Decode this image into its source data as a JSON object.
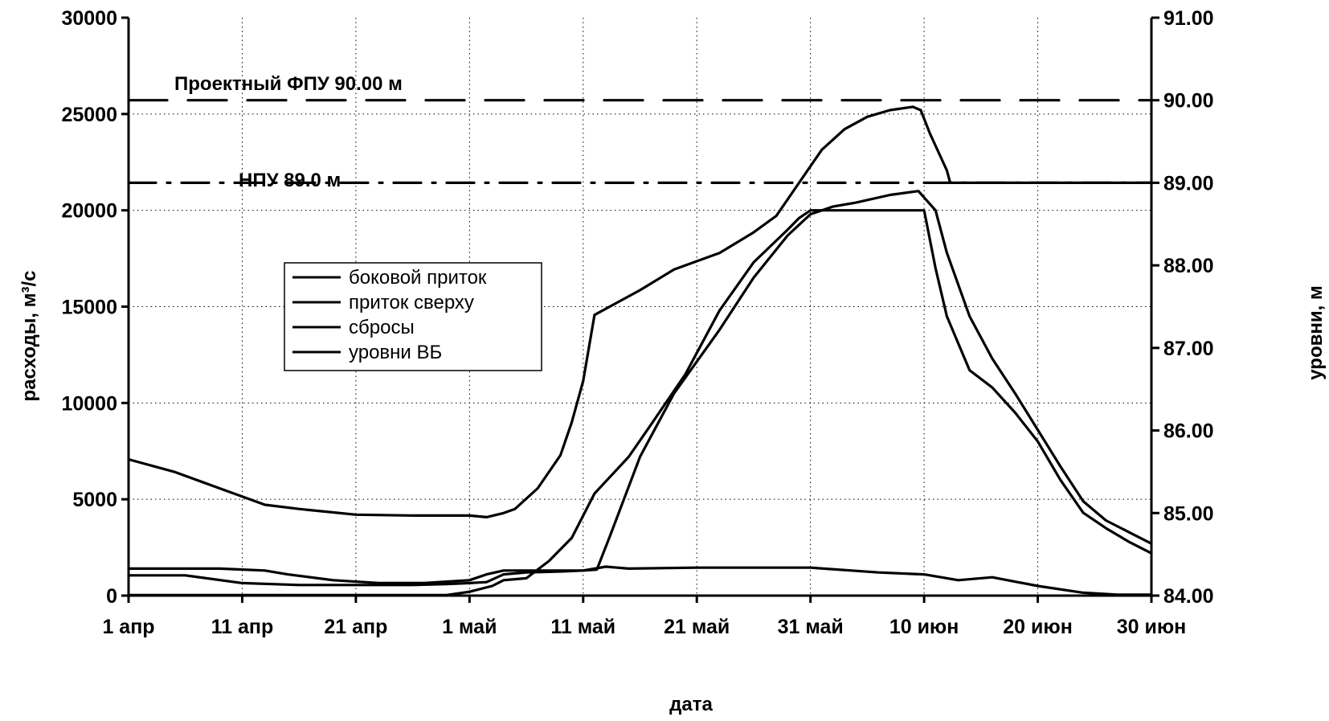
{
  "chart_data": {
    "type": "line",
    "title": "",
    "xlabel": "дата",
    "ylabel": "расходы, м³/с",
    "y2label": "уровни, м",
    "x_range_days": [
      0,
      90
    ],
    "xticks": [
      {
        "day": 0,
        "label": "1 апр"
      },
      {
        "day": 10,
        "label": "11 апр"
      },
      {
        "day": 20,
        "label": "21 апр"
      },
      {
        "day": 30,
        "label": "1 май"
      },
      {
        "day": 40,
        "label": "11 май"
      },
      {
        "day": 50,
        "label": "21 май"
      },
      {
        "day": 60,
        "label": "31 май"
      },
      {
        "day": 70,
        "label": "10 июн"
      },
      {
        "day": 80,
        "label": "20 июн"
      },
      {
        "day": 90,
        "label": "30 июн"
      }
    ],
    "ylim": [
      0,
      30000
    ],
    "yticks": [
      "0",
      "5000",
      "10000",
      "15000",
      "20000",
      "25000",
      "30000"
    ],
    "ylim2": [
      84.0,
      91.0
    ],
    "yticks2": [
      "84.00",
      "85.00",
      "86.00",
      "87.00",
      "88.00",
      "89.00",
      "90.00",
      "91.00"
    ],
    "grid": true,
    "legend_position": "center-left",
    "series": [
      {
        "name": "боковой приток",
        "axis": "left",
        "points": [
          [
            0,
            1400
          ],
          [
            8,
            1400
          ],
          [
            12,
            1300
          ],
          [
            14,
            1100
          ],
          [
            18,
            800
          ],
          [
            22,
            650
          ],
          [
            26,
            650
          ],
          [
            30,
            800
          ],
          [
            31.5,
            1100
          ],
          [
            33,
            1300
          ],
          [
            38,
            1300
          ],
          [
            40,
            1300
          ],
          [
            42,
            1500
          ],
          [
            44,
            1400
          ],
          [
            50,
            1450
          ],
          [
            60,
            1450
          ],
          [
            66,
            1200
          ],
          [
            70,
            1100
          ],
          [
            73,
            800
          ],
          [
            76,
            950
          ],
          [
            80,
            500
          ],
          [
            84,
            150
          ],
          [
            87,
            50
          ],
          [
            90,
            50
          ]
        ]
      },
      {
        "name": "приток сверху",
        "axis": "left",
        "points": [
          [
            0,
            1050
          ],
          [
            5,
            1050
          ],
          [
            10,
            650
          ],
          [
            15,
            550
          ],
          [
            20,
            550
          ],
          [
            25,
            550
          ],
          [
            28,
            600
          ],
          [
            30,
            650
          ],
          [
            31.5,
            700
          ],
          [
            33,
            1100
          ],
          [
            35,
            1200
          ],
          [
            38,
            1250
          ],
          [
            40,
            1300
          ],
          [
            41.2,
            1350
          ],
          [
            42.3,
            3000
          ],
          [
            45,
            7200
          ],
          [
            48,
            10500
          ],
          [
            52,
            13800
          ],
          [
            55,
            16500
          ],
          [
            58,
            18700
          ],
          [
            60,
            19800
          ],
          [
            62,
            20200
          ],
          [
            64,
            20400
          ],
          [
            67,
            20800
          ],
          [
            69.5,
            21000
          ],
          [
            71,
            20000
          ],
          [
            72,
            17800
          ],
          [
            74,
            14500
          ],
          [
            76,
            12300
          ],
          [
            78,
            10500
          ],
          [
            80,
            8600
          ],
          [
            82,
            6700
          ],
          [
            84,
            4900
          ],
          [
            86,
            3900
          ],
          [
            88,
            3300
          ],
          [
            90,
            2700
          ]
        ]
      },
      {
        "name": "сбросы",
        "axis": "left",
        "points": [
          [
            0,
            30
          ],
          [
            20,
            30
          ],
          [
            28,
            30
          ],
          [
            30,
            200
          ],
          [
            32,
            500
          ],
          [
            33,
            800
          ],
          [
            35,
            900
          ],
          [
            37,
            1800
          ],
          [
            39,
            3000
          ],
          [
            41,
            5300
          ],
          [
            44,
            7200
          ],
          [
            46,
            8900
          ],
          [
            49,
            11500
          ],
          [
            52,
            14800
          ],
          [
            55,
            17300
          ],
          [
            58,
            19000
          ],
          [
            59,
            19600
          ],
          [
            60,
            20000
          ],
          [
            70,
            20000
          ],
          [
            71,
            17000
          ],
          [
            72,
            14500
          ],
          [
            74,
            11700
          ],
          [
            76,
            10800
          ],
          [
            78,
            9500
          ],
          [
            80,
            8000
          ],
          [
            82,
            6000
          ],
          [
            84,
            4300
          ],
          [
            86,
            3500
          ],
          [
            88,
            2800
          ],
          [
            90,
            2200
          ]
        ]
      },
      {
        "name": "уровни ВБ",
        "axis": "right",
        "points": [
          [
            0,
            85.65
          ],
          [
            4,
            85.5
          ],
          [
            8,
            85.3
          ],
          [
            12,
            85.1
          ],
          [
            15,
            85.05
          ],
          [
            20,
            84.98
          ],
          [
            25,
            84.97
          ],
          [
            30,
            84.97
          ],
          [
            31.5,
            84.95
          ],
          [
            33,
            85.0
          ],
          [
            34,
            85.05
          ],
          [
            36,
            85.3
          ],
          [
            38,
            85.7
          ],
          [
            39,
            86.1
          ],
          [
            40,
            86.6
          ],
          [
            41,
            87.4
          ],
          [
            43,
            87.55
          ],
          [
            45,
            87.7
          ],
          [
            48,
            87.95
          ],
          [
            52,
            88.15
          ],
          [
            55,
            88.4
          ],
          [
            57,
            88.6
          ],
          [
            59,
            89.0
          ],
          [
            61,
            89.4
          ],
          [
            63,
            89.65
          ],
          [
            65,
            89.8
          ],
          [
            67,
            89.88
          ],
          [
            69,
            89.92
          ],
          [
            69.7,
            89.88
          ],
          [
            70.5,
            89.6
          ],
          [
            72,
            89.15
          ],
          [
            72.3,
            89.0
          ],
          [
            90,
            89.0
          ]
        ]
      },
      {
        "name": "Проектный ФПУ 90.00 м",
        "axis": "right",
        "style": "dashed",
        "points": [
          [
            0,
            90.0
          ],
          [
            90,
            90.0
          ]
        ]
      },
      {
        "name": "НПУ 89.0 м",
        "axis": "right",
        "style": "dashdot",
        "points": [
          [
            0,
            89.0
          ],
          [
            90,
            89.0
          ]
        ]
      }
    ],
    "annotations": [
      {
        "text": "Проектный ФПУ 90.00 м",
        "target": "Проектный ФПУ 90.00 м"
      },
      {
        "text": "НПУ 89.0 м",
        "target": "НПУ 89.0 м"
      }
    ]
  }
}
